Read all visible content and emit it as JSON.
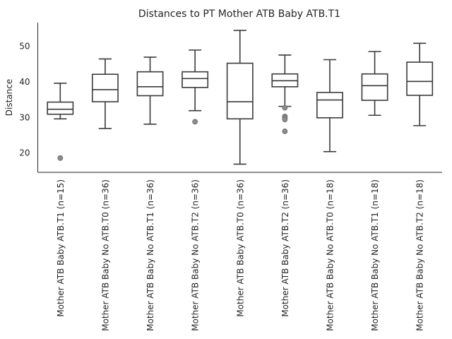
{
  "chart_data": {
    "type": "box",
    "title": "Distances to PT Mother ATB Baby ATB.T1",
    "xlabel": "",
    "ylabel": "Distance",
    "ylim": [
      14.5,
      56.5
    ],
    "yticks": [
      20,
      30,
      40,
      50
    ],
    "grid": false,
    "categories": [
      "Mother ATB Baby ATB.T1 (n=15)",
      "Mother ATB Baby No ATB.T0 (n=36)",
      "Mother ATB Baby No ATB.T1 (n=36)",
      "Mother ATB Baby No ATB.T2 (n=36)",
      "Mother ATB Baby ATB.T0 (n=36)",
      "Mother ATB Baby ATB.T2 (n=36)",
      "Mother ATB Baby No ATB.T0 (n=18)",
      "Mother ATB Baby No ATB.T1 (n=18)",
      "Mother ATB Baby No ATB.T2 (n=18)"
    ],
    "boxes": [
      {
        "whisker_low": 29.5,
        "q1": 30.8,
        "median": 32.2,
        "q3": 34.2,
        "whisker_high": 39.5,
        "outliers": [
          18.5
        ]
      },
      {
        "whisker_low": 26.8,
        "q1": 34.3,
        "median": 37.7,
        "q3": 42.0,
        "whisker_high": 46.3,
        "outliers": []
      },
      {
        "whisker_low": 28.0,
        "q1": 36.0,
        "median": 38.5,
        "q3": 42.7,
        "whisker_high": 46.8,
        "outliers": []
      },
      {
        "whisker_low": 31.8,
        "q1": 38.3,
        "median": 40.8,
        "q3": 42.7,
        "whisker_high": 48.8,
        "outliers": [
          28.7
        ]
      },
      {
        "whisker_low": 16.8,
        "q1": 29.5,
        "median": 34.3,
        "q3": 45.1,
        "whisker_high": 54.3,
        "outliers": []
      },
      {
        "whisker_low": 33.0,
        "q1": 38.5,
        "median": 40.2,
        "q3": 42.1,
        "whisker_high": 47.4,
        "outliers": [
          32.6,
          30.2,
          29.8,
          29.3,
          26.0
        ]
      },
      {
        "whisker_low": 20.3,
        "q1": 29.8,
        "median": 34.8,
        "q3": 36.9,
        "whisker_high": 46.1,
        "outliers": []
      },
      {
        "whisker_low": 30.5,
        "q1": 34.7,
        "median": 38.8,
        "q3": 42.1,
        "whisker_high": 48.4,
        "outliers": []
      },
      {
        "whisker_low": 27.6,
        "q1": 36.1,
        "median": 40.0,
        "q3": 45.4,
        "whisker_high": 50.7,
        "outliers": []
      }
    ],
    "colors": {
      "box_edge": "#3a3a3a",
      "box_fill": "#ffffff",
      "flier": "#8a8a8a",
      "text": "#262626"
    }
  }
}
